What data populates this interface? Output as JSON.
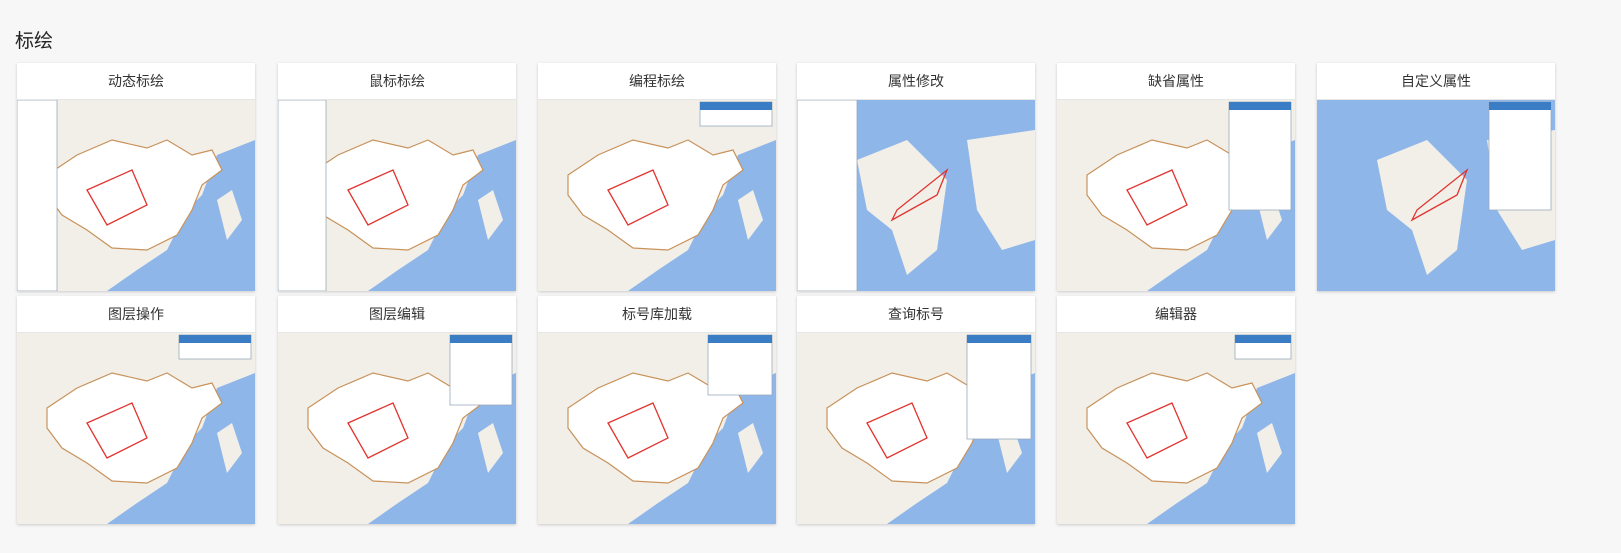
{
  "page": {
    "title": "标绘"
  },
  "cards": [
    {
      "title": "动态标绘",
      "panel": "tree"
    },
    {
      "title": "鼠标标绘",
      "panel": "tree2"
    },
    {
      "title": "编程标绘",
      "panel": "box"
    },
    {
      "title": "属性修改",
      "panel": "props"
    },
    {
      "title": "缺省属性",
      "panel": "form"
    },
    {
      "title": "自定义属性",
      "panel": "form2"
    },
    {
      "title": "图层操作",
      "panel": "box"
    },
    {
      "title": "图层编辑",
      "panel": "form3"
    },
    {
      "title": "标号库加载",
      "panel": "table"
    },
    {
      "title": "查询标号",
      "panel": "query"
    },
    {
      "title": "编辑器",
      "panel": "box"
    }
  ],
  "colors": {
    "ocean": "#8fb6e8",
    "land": "#f2efe9",
    "china": "#ffffff",
    "border": "#c8925a",
    "plot": "#e2342f",
    "panel_header": "#3b7dc4"
  }
}
